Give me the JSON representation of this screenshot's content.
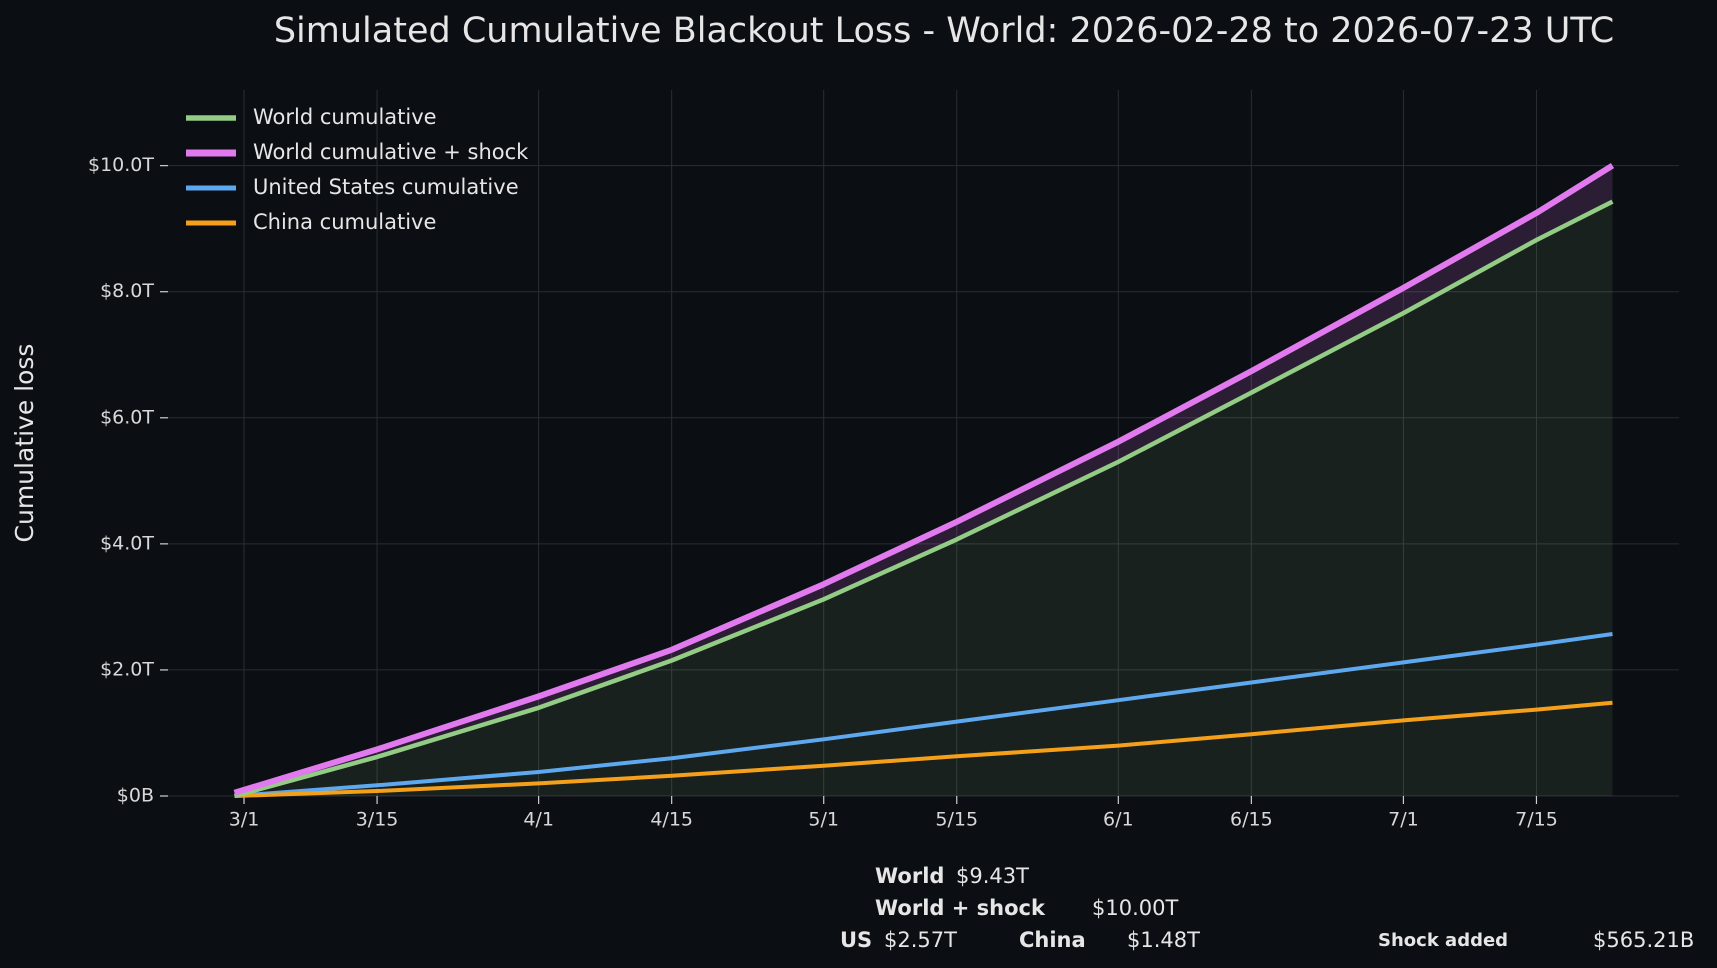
{
  "chart_data": {
    "type": "line",
    "title": "Simulated Cumulative Blackout Loss - World: 2026-02-28 to 2026-07-23 UTC",
    "y_label": "Cumulative loss",
    "x": [
      "2026-02-28",
      "2026-03-15",
      "2026-04-01",
      "2026-04-15",
      "2026-05-01",
      "2026-05-15",
      "2026-06-01",
      "2026-06-15",
      "2026-07-01",
      "2026-07-15",
      "2026-07-23"
    ],
    "series": [
      {
        "name": "World cumulative",
        "color": "#93cc84",
        "values": [
          0.0,
          0.62,
          1.4,
          2.15,
          3.12,
          4.07,
          5.3,
          6.4,
          7.66,
          8.82,
          9.43
        ]
      },
      {
        "name": "World cumulative + shock",
        "color": "#e27aef",
        "values": [
          0.05,
          0.74,
          1.58,
          2.32,
          3.36,
          4.35,
          5.62,
          6.74,
          8.06,
          9.25,
          10.0
        ]
      },
      {
        "name": "United States cumulative",
        "color": "#5ea8f0",
        "values": [
          0.0,
          0.17,
          0.38,
          0.6,
          0.9,
          1.18,
          1.52,
          1.8,
          2.12,
          2.4,
          2.57
        ]
      },
      {
        "name": "China cumulative",
        "color": "#f5a01a",
        "values": [
          0.0,
          0.08,
          0.2,
          0.32,
          0.48,
          0.63,
          0.8,
          0.98,
          1.2,
          1.37,
          1.48
        ]
      }
    ],
    "xlim": [
      "2026-02-21",
      "2026-07-30"
    ],
    "xticks": [
      {
        "value": "2026-03-01",
        "label": "3/1"
      },
      {
        "value": "2026-03-15",
        "label": "3/15"
      },
      {
        "value": "2026-04-01",
        "label": "4/1"
      },
      {
        "value": "2026-04-15",
        "label": "4/15"
      },
      {
        "value": "2026-05-01",
        "label": "5/1"
      },
      {
        "value": "2026-05-15",
        "label": "5/15"
      },
      {
        "value": "2026-06-01",
        "label": "6/1"
      },
      {
        "value": "2026-06-15",
        "label": "6/15"
      },
      {
        "value": "2026-07-01",
        "label": "7/1"
      },
      {
        "value": "2026-07-15",
        "label": "7/15"
      }
    ],
    "ylim": [
      0,
      11.2
    ],
    "yticks": [
      {
        "value": 0,
        "label": "$0B"
      },
      {
        "value": 2,
        "label": "$2.0T"
      },
      {
        "value": 4,
        "label": "$4.0T"
      },
      {
        "value": 6,
        "label": "$6.0T"
      },
      {
        "value": 8,
        "label": "$8.0T"
      },
      {
        "value": 10,
        "label": "$10.0T"
      }
    ],
    "grid": true,
    "legend": "upper left"
  },
  "summary": {
    "world": {
      "label": "World",
      "value": "$9.43T"
    },
    "shock": {
      "label": "World + shock",
      "value": "$10.00T"
    },
    "us": {
      "label": "US",
      "value": "$2.57T"
    },
    "china": {
      "label": "China",
      "value": "$1.48T"
    },
    "added": {
      "label": "Shock added",
      "value": "$565.21B"
    }
  }
}
